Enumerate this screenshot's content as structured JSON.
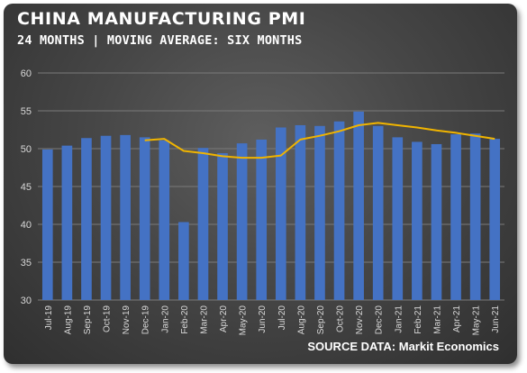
{
  "title": "CHINA MANUFACTURING PMI",
  "subtitle": "24 MONTHS | MOVING AVERAGE: SIX MONTHS",
  "source": "SOURCE DATA: Markit Economics",
  "colors": {
    "bar": "#4472c4",
    "line": "#f0b400",
    "grid": "#7a7a7a"
  },
  "chart_data": {
    "type": "bar",
    "title": "CHINA MANUFACTURING PMI",
    "subtitle": "24 MONTHS | MOVING AVERAGE: SIX MONTHS",
    "xlabel": "",
    "ylabel": "",
    "ylim": [
      30,
      60
    ],
    "yticks": [
      30,
      35,
      40,
      45,
      50,
      55,
      60
    ],
    "grid": true,
    "categories": [
      "Jul-19",
      "Aug-19",
      "Sep-19",
      "Oct-19",
      "Nov-19",
      "Dec-19",
      "Jan-20",
      "Feb-20",
      "Mar-20",
      "Apr-20",
      "May-20",
      "Jun-20",
      "Jul-20",
      "Aug-20",
      "Sep-20",
      "Oct-20",
      "Nov-20",
      "Dec-20",
      "Jan-21",
      "Feb-21",
      "Mar-21",
      "Apr-21",
      "May-21",
      "Jun-21"
    ],
    "series": [
      {
        "type": "bar",
        "values": [
          49.9,
          50.4,
          51.4,
          51.7,
          51.8,
          51.5,
          51.1,
          40.3,
          50.1,
          49.4,
          50.7,
          51.2,
          52.8,
          53.1,
          53.0,
          53.6,
          54.9,
          53.0,
          51.5,
          50.9,
          50.6,
          51.9,
          52.0,
          51.3
        ]
      },
      {
        "type": "line",
        "values": [
          null,
          null,
          null,
          null,
          null,
          51.1,
          51.3,
          49.7,
          49.4,
          49.0,
          48.8,
          48.8,
          49.1,
          51.2,
          51.7,
          52.3,
          53.1,
          53.4,
          53.1,
          52.8,
          52.4,
          52.1,
          51.7,
          51.3
        ]
      }
    ],
    "source": "SOURCE DATA: Markit Economics"
  }
}
